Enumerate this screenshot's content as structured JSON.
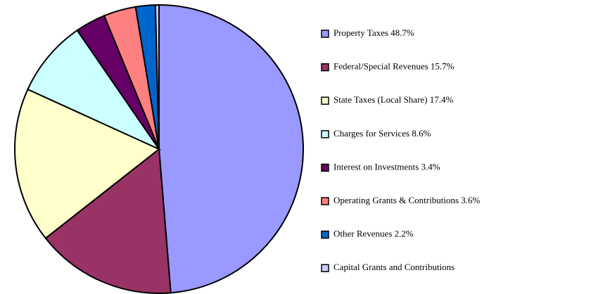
{
  "chart_data": {
    "type": "pie",
    "categories": [
      "Property Taxes 48.7%",
      "Federal/Special Revenues 15.7%",
      "State Taxes (Local Share) 17.4%",
      "Charges for Services 8.6%",
      "Interest on Investments 3.4%",
      "Operating Grants & Contributions 3.6%",
      "Other Revenues 2.2%",
      "Capital Grants and Contributions"
    ],
    "values": [
      48.7,
      15.7,
      17.4,
      8.6,
      3.4,
      3.6,
      2.2,
      0.4
    ],
    "colors": [
      "#9999ff",
      "#993366",
      "#ffffcc",
      "#ccffff",
      "#660066",
      "#ff8080",
      "#0066cc",
      "#ccccff"
    ],
    "legend": "right"
  }
}
